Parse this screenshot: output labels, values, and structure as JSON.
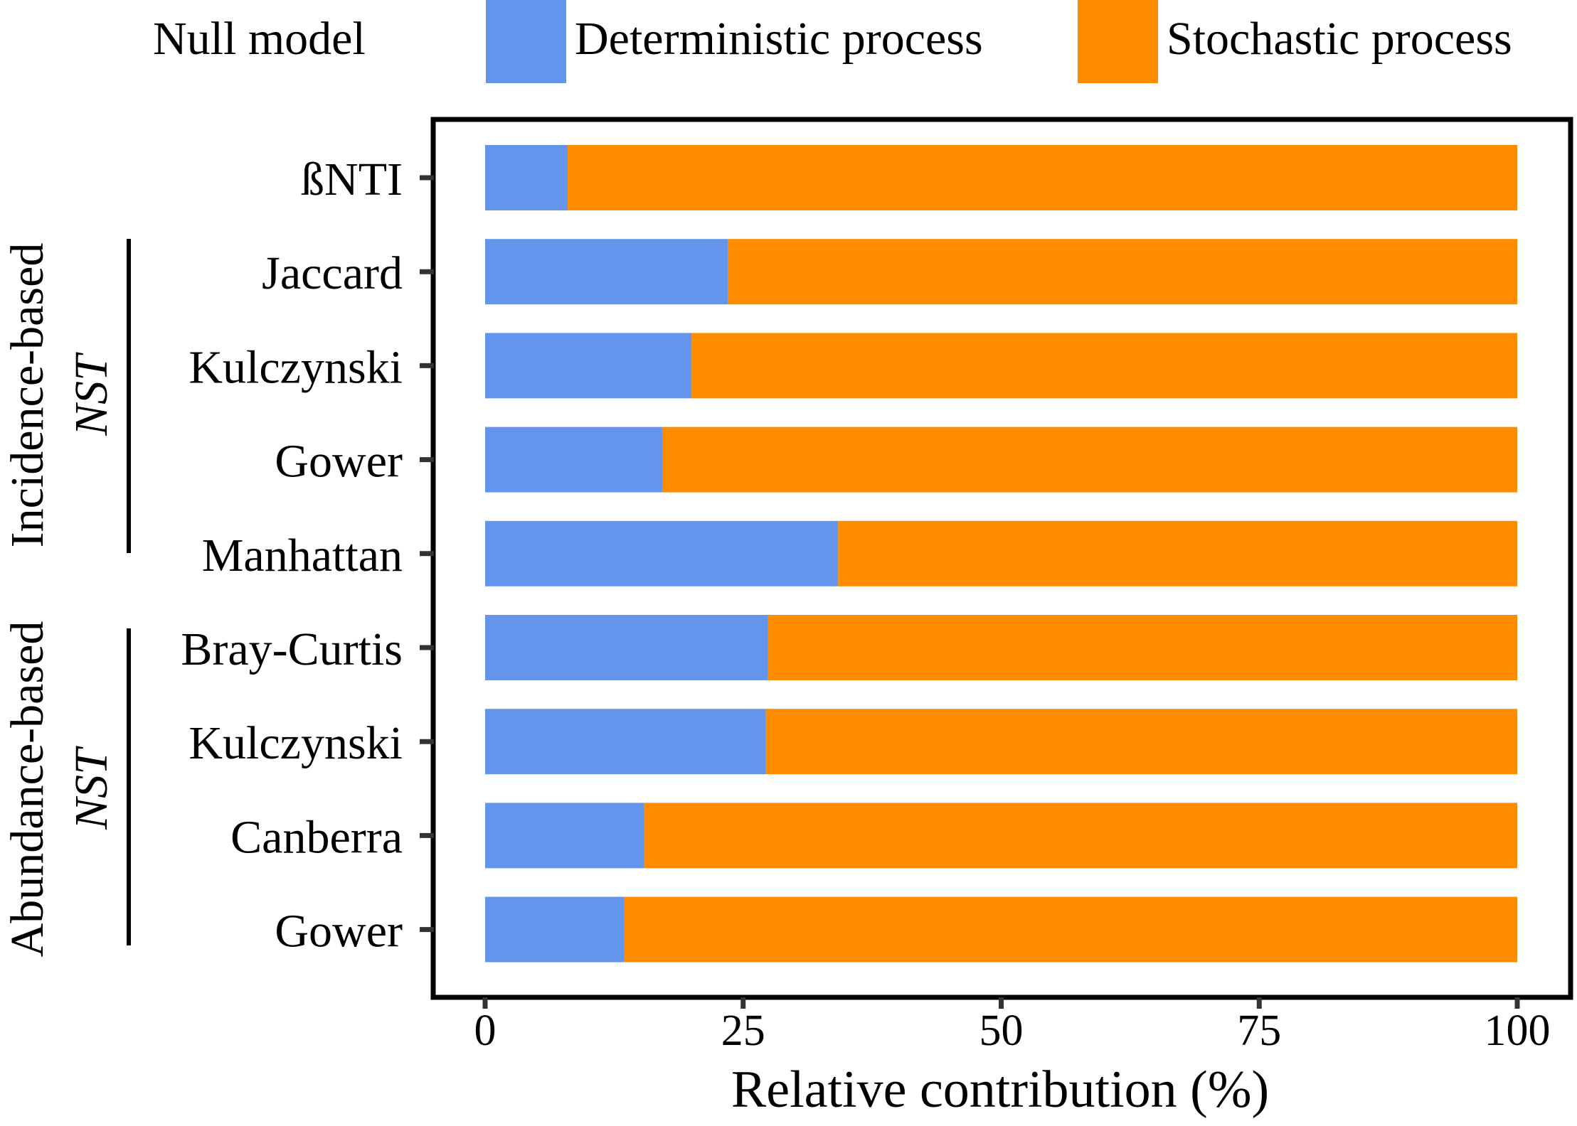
{
  "chart_data": {
    "type": "bar",
    "stacked": true,
    "orientation": "horizontal",
    "categories": [
      "ßNTI",
      "Jaccard",
      "Kulczynski",
      "Gower",
      "Manhattan",
      "Bray-Curtis",
      "Kulczynski",
      "Canberra",
      "Gower"
    ],
    "series": [
      {
        "name": "Deterministic process",
        "color": "#6495ED",
        "values": [
          8,
          23.5,
          20,
          17.2,
          34.2,
          27.4,
          27.2,
          15.4,
          13.5
        ]
      },
      {
        "name": "Stochastic process",
        "color": "#FF8C00",
        "values": [
          92,
          76.5,
          80,
          82.8,
          65.8,
          72.6,
          72.8,
          84.6,
          86.5
        ]
      }
    ],
    "xlabel": "Relative contribution (%)",
    "ylabel": "",
    "xlim": [
      0,
      100
    ],
    "xticks": [
      "0",
      "25",
      "50",
      "75",
      "100"
    ],
    "legend": {
      "title": "Null model",
      "position": "top"
    },
    "groups": [
      {
        "label": "Incidence-based",
        "sublabel": "NST",
        "members": [
          "Jaccard",
          "Kulczynski",
          "Gower",
          "Manhattan"
        ]
      },
      {
        "label": "Abundance-based",
        "sublabel": "NST",
        "members": [
          "Bray-Curtis",
          "Kulczynski",
          "Canberra",
          "Gower"
        ]
      }
    ]
  }
}
